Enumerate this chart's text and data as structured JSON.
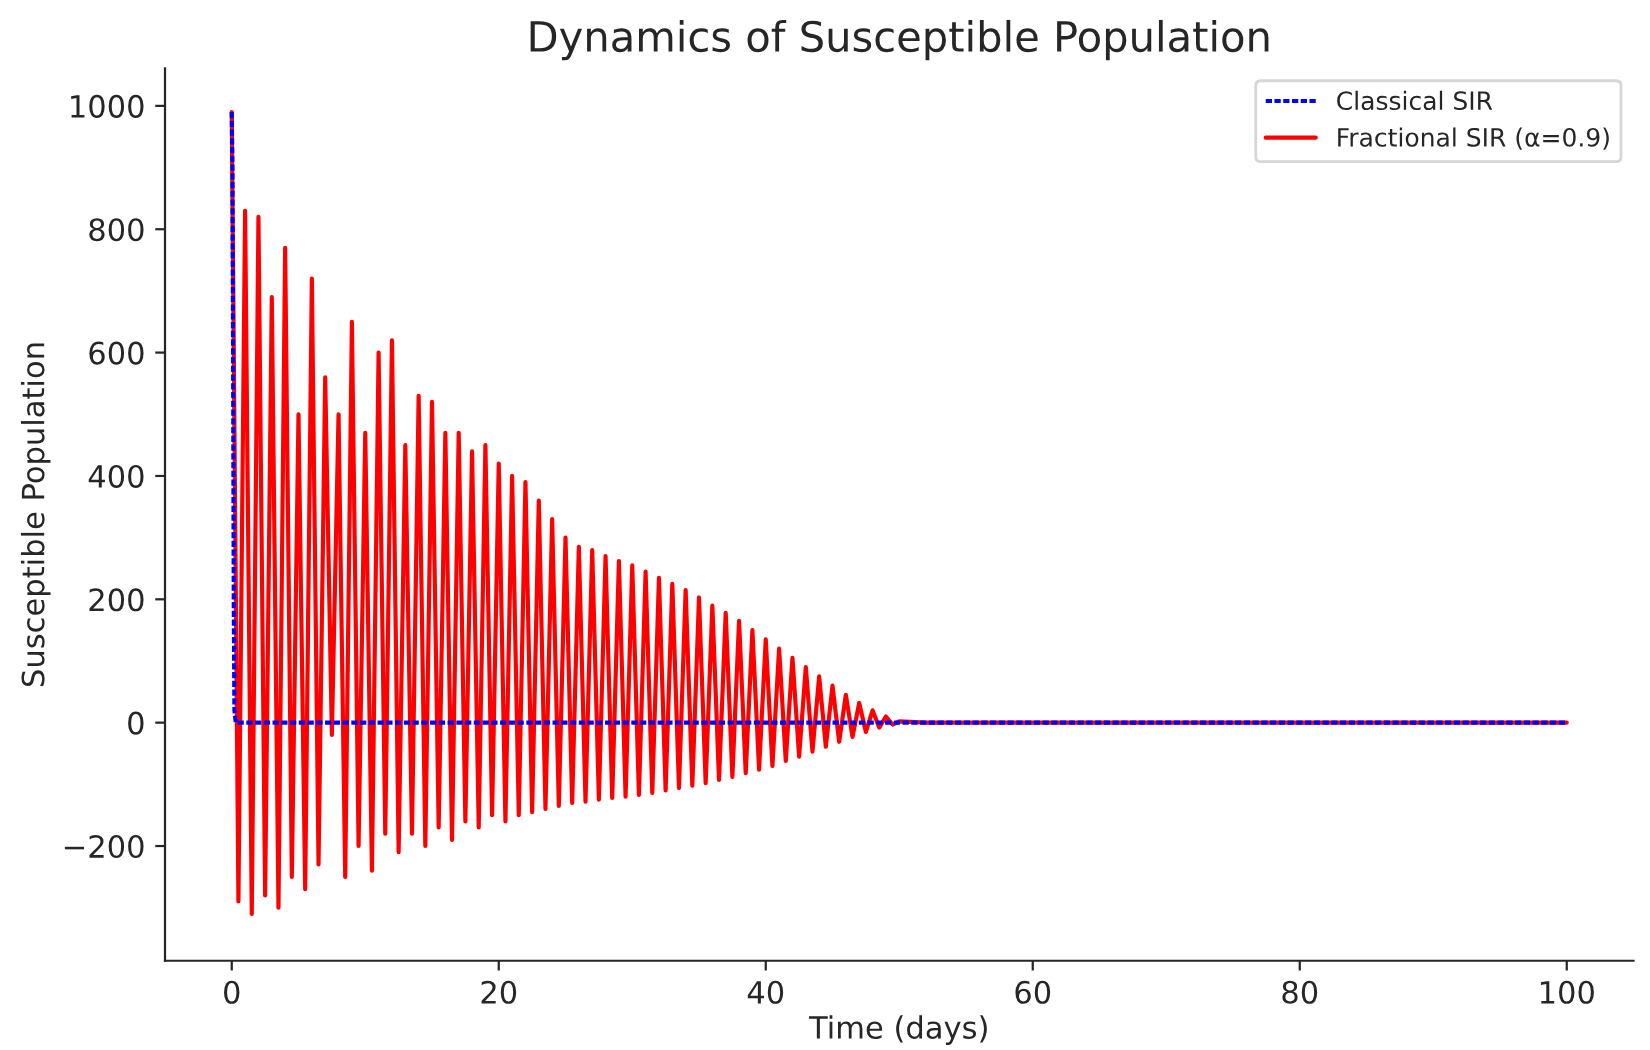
{
  "chart_data": {
    "type": "line",
    "title": "Dynamics of Susceptible Population",
    "xlabel": "Time (days)",
    "ylabel": "Susceptible Population",
    "xlim": [
      -5,
      105
    ],
    "ylim": [
      -386,
      1061
    ],
    "xticks": [
      0,
      20,
      40,
      60,
      80,
      100
    ],
    "yticks": [
      {
        "value": -200,
        "label": "−200"
      },
      0,
      200,
      400,
      600,
      800,
      1000
    ],
    "legend": "top right",
    "grid": false,
    "series": [
      {
        "name": "Classical SIR",
        "color": "#0000ff",
        "line_style": "dashed",
        "x": [
          0,
          0.05,
          0.1,
          0.15,
          0.2,
          0.3,
          100
        ],
        "values": [
          990,
          900,
          600,
          200,
          20,
          0,
          0
        ]
      },
      {
        "name": "Fractional SIR (α=0.9)",
        "color": "#ff0000",
        "line_style": "solid",
        "x": [
          0,
          0.5,
          1,
          1.5,
          2,
          2.5,
          3,
          3.5,
          4,
          4.5,
          5,
          5.5,
          6,
          6.5,
          7,
          7.5,
          8,
          8.5,
          9,
          9.5,
          10,
          10.5,
          11,
          11.5,
          12,
          12.5,
          13,
          13.5,
          14,
          14.5,
          15,
          15.5,
          16,
          16.5,
          17,
          17.5,
          18,
          18.5,
          19,
          19.5,
          20,
          20.5,
          21,
          21.5,
          22,
          22.5,
          23,
          23.5,
          24,
          24.5,
          25,
          25.5,
          26,
          26.5,
          27,
          27.5,
          28,
          28.5,
          29,
          29.5,
          30,
          30.5,
          31,
          31.5,
          32,
          32.5,
          33,
          33.5,
          34,
          34.5,
          35,
          35.5,
          36,
          36.5,
          37,
          37.5,
          38,
          38.5,
          39,
          39.5,
          40,
          40.5,
          41,
          41.5,
          42,
          42.5,
          43,
          43.5,
          44,
          44.5,
          45,
          45.5,
          46,
          46.5,
          47,
          47.5,
          48,
          48.5,
          49,
          49.5,
          50,
          52,
          100
        ],
        "values": [
          990,
          -290,
          830,
          -310,
          820,
          -280,
          690,
          -300,
          770,
          -250,
          500,
          -270,
          720,
          -230,
          560,
          -20,
          500,
          -250,
          650,
          -200,
          470,
          -240,
          600,
          -180,
          620,
          -210,
          450,
          -180,
          530,
          -200,
          520,
          -170,
          470,
          -190,
          470,
          -160,
          440,
          -170,
          450,
          -150,
          420,
          -160,
          400,
          -150,
          390,
          -145,
          360,
          -140,
          330,
          -135,
          300,
          -130,
          285,
          -128,
          280,
          -125,
          270,
          -122,
          262,
          -120,
          255,
          -117,
          245,
          -114,
          235,
          -110,
          225,
          -106,
          215,
          -102,
          203,
          -98,
          190,
          -93,
          178,
          -88,
          165,
          -82,
          150,
          -76,
          135,
          -70,
          120,
          -62,
          105,
          -55,
          90,
          -47,
          75,
          -39,
          60,
          -31,
          45,
          -23,
          32,
          -15,
          20,
          -8,
          10,
          -3,
          2,
          0,
          0
        ]
      }
    ]
  }
}
